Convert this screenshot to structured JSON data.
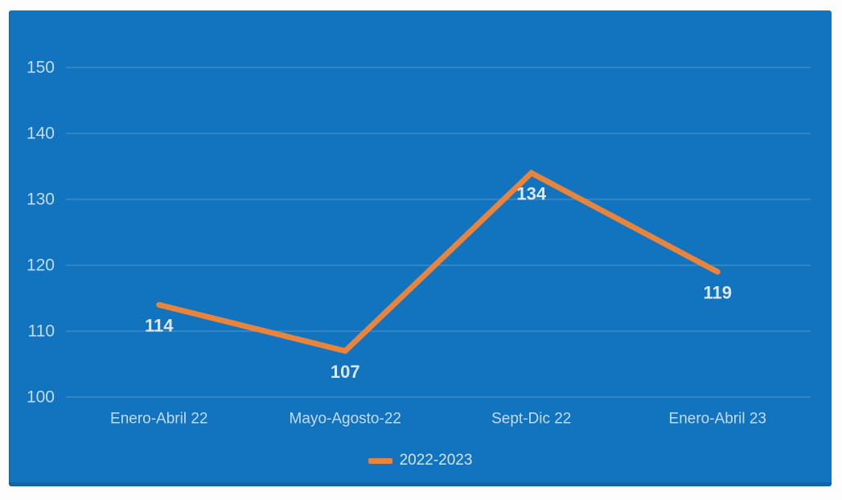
{
  "colors": {
    "page_background": "#FDFDFD",
    "panel_background": "#1273BE",
    "gridline": "rgba(255,255,255,0.18)",
    "series_line": "#E8843C",
    "axis_tick_label": "#C3DCF1",
    "category_label": "#C3DCF1",
    "data_label": "#DDE8F3",
    "legend_text": "#D5E4F1"
  },
  "chart_data": {
    "type": "line",
    "title": "",
    "xlabel": "",
    "ylabel": "",
    "categories": [
      "Enero-Abril 22",
      "Mayo-Agosto-22",
      "Sept-Dic 22",
      "Enero-Abril 23"
    ],
    "series": [
      {
        "name": "2022-2023",
        "values": [
          114,
          107,
          134,
          119
        ],
        "color": "#E8843C",
        "line_width": 7
      }
    ],
    "data_labels": [
      "114",
      "107",
      "134",
      "119"
    ],
    "yticks": [
      100,
      110,
      120,
      130,
      140,
      150
    ],
    "ytick_labels": [
      "100",
      "110",
      "120",
      "130",
      "140",
      "150"
    ],
    "ylim": [
      100,
      150
    ],
    "grid": "horizontal-only",
    "legend_position": "bottom-center"
  }
}
